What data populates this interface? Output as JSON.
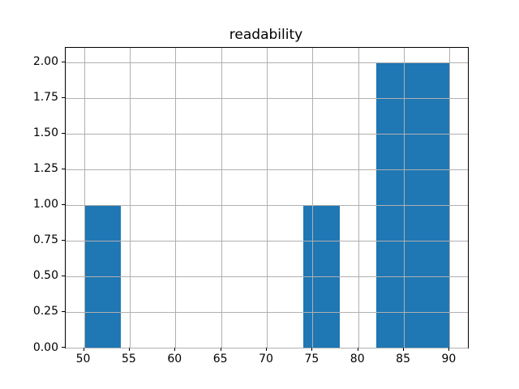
{
  "chart_data": {
    "type": "bar",
    "subtype": "histogram",
    "title": "readability",
    "xlabel": "",
    "ylabel": "",
    "bin_edges": [
      50,
      54,
      58,
      62,
      66,
      70,
      74,
      78,
      82,
      86,
      90
    ],
    "counts": [
      1,
      0,
      0,
      0,
      0,
      0,
      1,
      0,
      2,
      2
    ],
    "xlim": [
      48,
      92
    ],
    "ylim": [
      0,
      2.1
    ],
    "xticks": [
      50,
      55,
      60,
      65,
      70,
      75,
      80,
      85,
      90
    ],
    "xtick_labels": [
      "50",
      "55",
      "60",
      "65",
      "70",
      "75",
      "80",
      "85",
      "90"
    ],
    "yticks": [
      0,
      0.25,
      0.5,
      0.75,
      1.0,
      1.25,
      1.5,
      1.75,
      2.0
    ],
    "ytick_labels": [
      "0.00",
      "0.25",
      "0.50",
      "0.75",
      "1.00",
      "1.25",
      "1.50",
      "1.75",
      "2.00"
    ],
    "grid": true,
    "grid_over_bars": true,
    "legend": null,
    "bar_color": "#1f77b4",
    "grid_color": "#b0b0b0",
    "axis_color": "#000000",
    "background_color": "#ffffff"
  }
}
